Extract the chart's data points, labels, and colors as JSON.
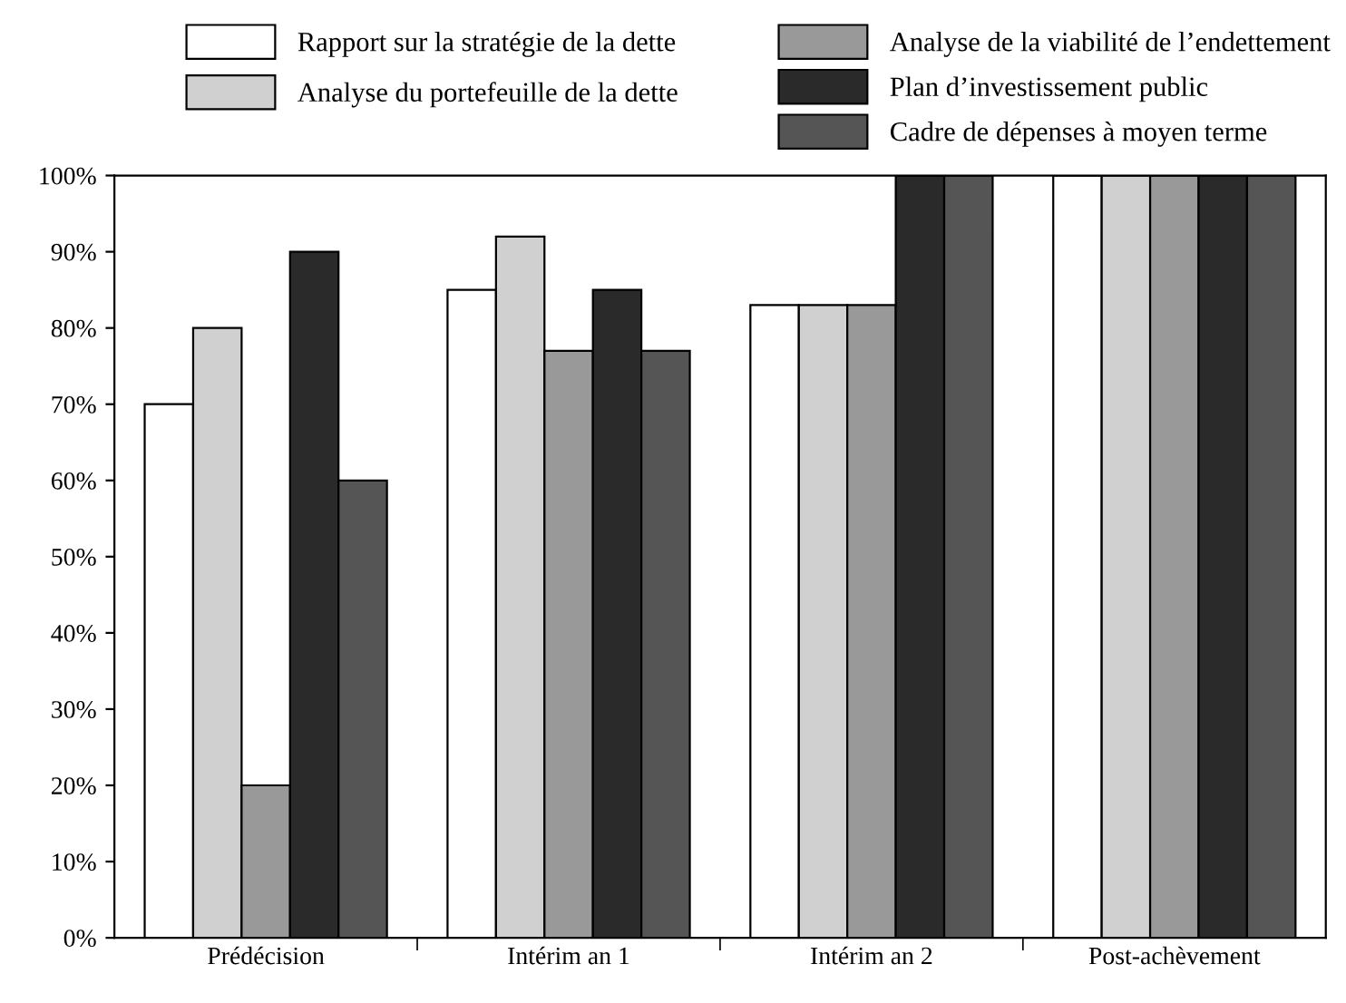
{
  "chart_data": {
    "type": "bar",
    "categories": [
      "Prédécision",
      "Intérim an 1",
      "Intérim an 2",
      "Post-achèvement"
    ],
    "series": [
      {
        "name": "Rapport sur la stratégie de la dette",
        "color": "#ffffff",
        "values": [
          70,
          85,
          83,
          100
        ]
      },
      {
        "name": "Analyse du portefeuille de la dette",
        "color": "#d0d0d0",
        "values": [
          80,
          92,
          83,
          100
        ]
      },
      {
        "name": "Analyse de la viabilité de l’endettement",
        "color": "#999999",
        "values": [
          20,
          77,
          83,
          100
        ]
      },
      {
        "name": "Plan d’investissement public",
        "color": "#2a2a2a",
        "values": [
          90,
          85,
          100,
          100
        ]
      },
      {
        "name": "Cadre de dépenses à moyen terme",
        "color": "#555555",
        "values": [
          60,
          77,
          100,
          100
        ]
      }
    ],
    "ylim": [
      0,
      100
    ],
    "yticks": [
      {
        "value": 0,
        "label": "0%"
      },
      {
        "value": 10,
        "label": "10%"
      },
      {
        "value": 20,
        "label": "20%"
      },
      {
        "value": 30,
        "label": "30%"
      },
      {
        "value": 40,
        "label": "40%"
      },
      {
        "value": 50,
        "label": "50%"
      },
      {
        "value": 60,
        "label": "60%"
      },
      {
        "value": 70,
        "label": "70%"
      },
      {
        "value": 80,
        "label": "80%"
      },
      {
        "value": 90,
        "label": "90%"
      },
      {
        "value": 100,
        "label": "100%"
      }
    ],
    "legend": "top",
    "grid": false
  }
}
